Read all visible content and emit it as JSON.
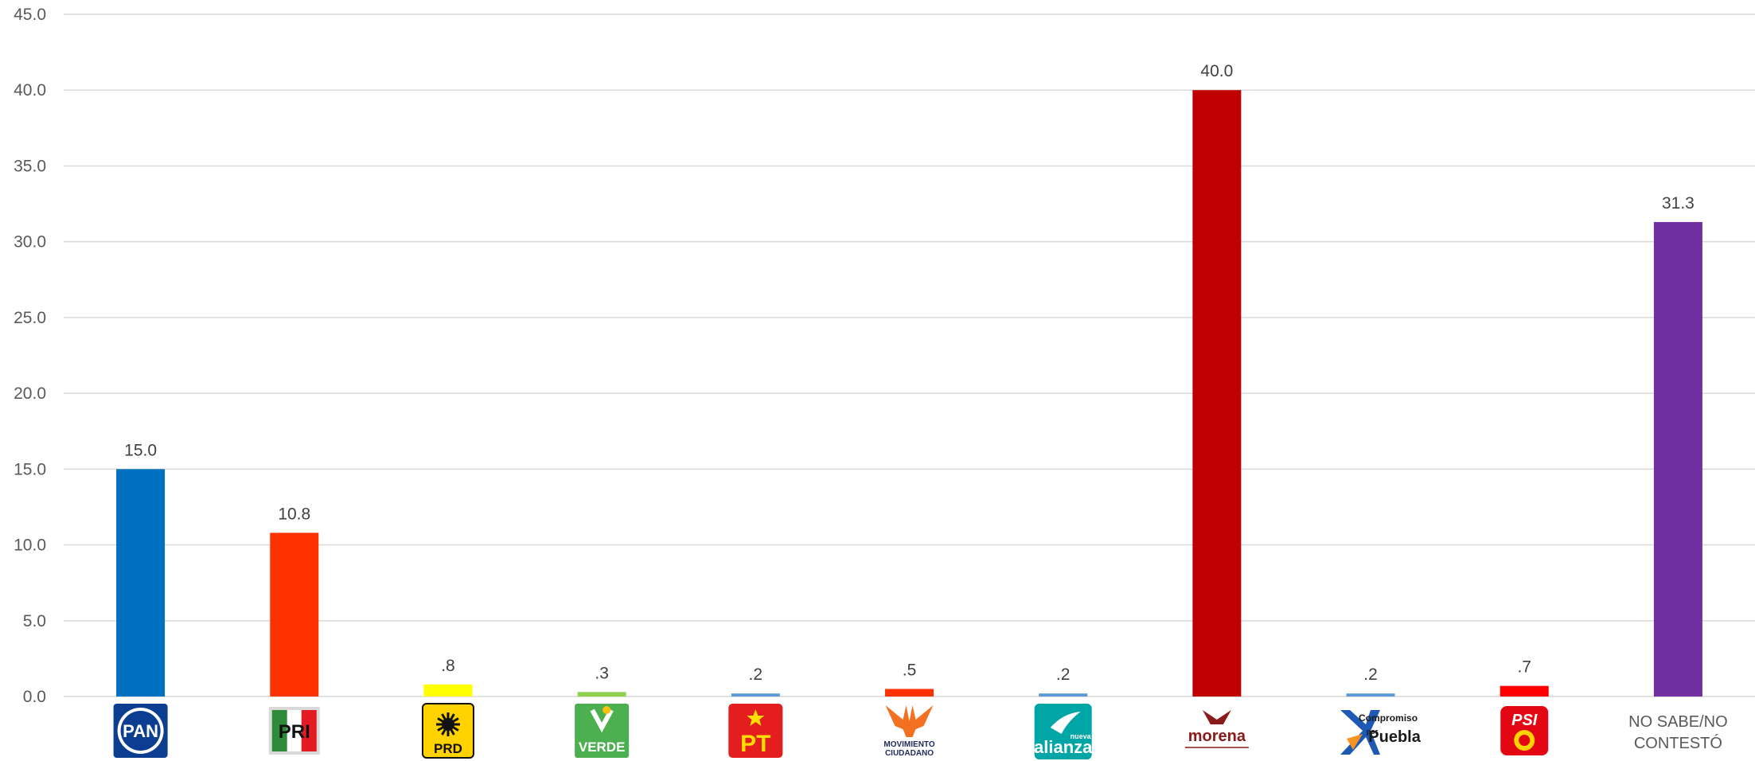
{
  "chart_data": {
    "type": "bar",
    "title": "",
    "xlabel": "",
    "ylabel": "",
    "ylim": [
      0,
      45
    ],
    "yticks": [
      "0.0",
      "5.0",
      "10.0",
      "15.0",
      "20.0",
      "25.0",
      "30.0",
      "35.0",
      "40.0",
      "45.0"
    ],
    "grid": true,
    "legend": "none",
    "categories": [
      {
        "key": "PAN",
        "logo": "pan-logo",
        "logo_text": "PAN",
        "value": 15.0,
        "label": "15.0",
        "color": "#0070c0"
      },
      {
        "key": "PRI",
        "logo": "pri-logo",
        "logo_text": "PRI",
        "value": 10.8,
        "label": "10.8",
        "color": "#ff3300"
      },
      {
        "key": "PRD",
        "logo": "prd-logo",
        "logo_text": "PRD",
        "value": 0.8,
        "label": ".8",
        "color": "#ffff00"
      },
      {
        "key": "VERDE",
        "logo": "verde-logo",
        "logo_text": "VERDE",
        "value": 0.3,
        "label": ".3",
        "color": "#92d050"
      },
      {
        "key": "PT",
        "logo": "pt-logo",
        "logo_text": "PT",
        "value": 0.2,
        "label": ".2",
        "color": "#5b9bd5"
      },
      {
        "key": "MOVIMIENTO CIUDADANO",
        "logo": "movimiento-ciudadano-logo",
        "logo_text": [
          "MOVIMIENTO",
          "CIUDADANO"
        ],
        "value": 0.5,
        "label": ".5",
        "color": "#ff3300"
      },
      {
        "key": "NUEVA ALIANZA",
        "logo": "nueva-alianza-logo",
        "logo_text": [
          "nueva",
          "alianza"
        ],
        "value": 0.2,
        "label": ".2",
        "color": "#5b9bd5"
      },
      {
        "key": "MORENA",
        "logo": "morena-logo",
        "logo_text": "morena",
        "value": 40.0,
        "label": "40.0",
        "color": "#c00000"
      },
      {
        "key": "COMPROMISO POR PUEBLA",
        "logo": "compromiso-por-puebla-logo",
        "logo_text": [
          "Compromiso",
          "por",
          "Puebla"
        ],
        "value": 0.2,
        "label": ".2",
        "color": "#5b9bd5"
      },
      {
        "key": "PSI",
        "logo": "psi-logo",
        "logo_text": "PSI",
        "value": 0.7,
        "label": ".7",
        "color": "#ff0000"
      },
      {
        "key": "NO SABE/NO CONTESTÓ",
        "logo": null,
        "text_label": [
          "NO SABE/NO",
          "CONTESTÓ"
        ],
        "value": 31.3,
        "label": "31.3",
        "color": "#7030a0"
      }
    ]
  }
}
